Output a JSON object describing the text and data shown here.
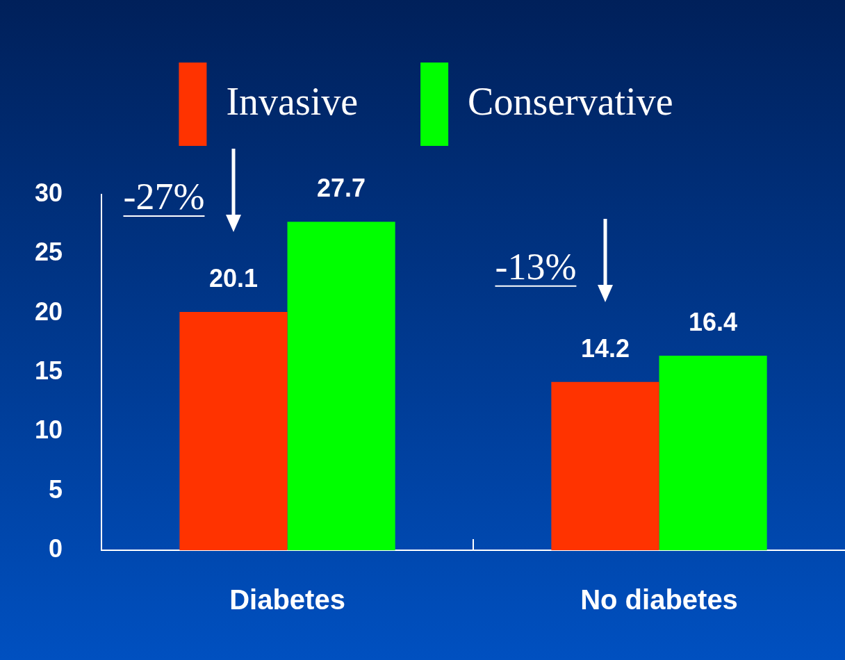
{
  "chart_data": {
    "type": "bar",
    "categories": [
      "Diabetes",
      "No diabetes"
    ],
    "series": [
      {
        "name": "Invasive",
        "color": "#ff3300",
        "values": [
          20.1,
          14.2
        ]
      },
      {
        "name": "Conservative",
        "color": "#00ff00",
        "values": [
          27.7,
          16.4
        ]
      }
    ],
    "ylim": [
      0,
      30
    ],
    "yticks": [
      0,
      5,
      10,
      15,
      20,
      25,
      30
    ],
    "grid": false,
    "legend": "top",
    "data_labels": true,
    "annotations": [
      "-27%",
      "-13%"
    ]
  }
}
